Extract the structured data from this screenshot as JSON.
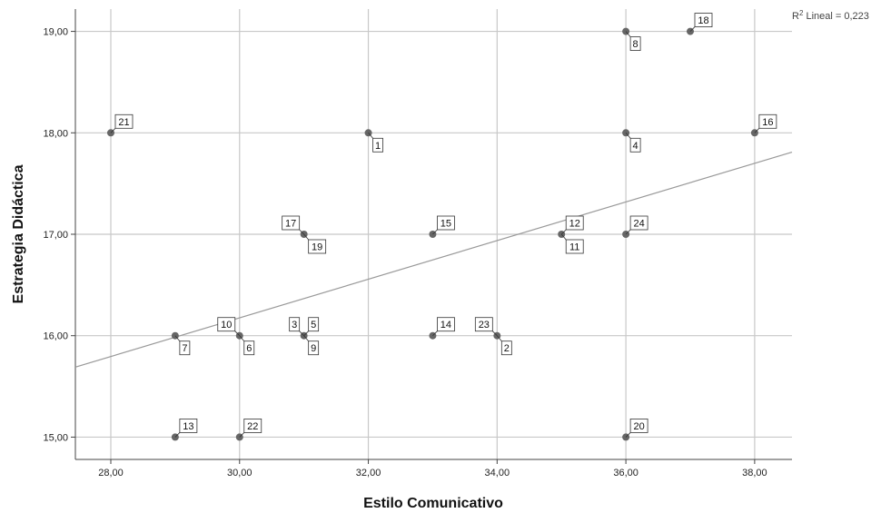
{
  "chart_data": {
    "type": "scatter",
    "title": "",
    "xlabel": "Estilo Comunicativo",
    "ylabel": "Estrategia Didáctica",
    "xlim": [
      27.45,
      38.58
    ],
    "ylim": [
      14.78,
      19.22
    ],
    "x_ticks": [
      28,
      30,
      32,
      34,
      36,
      38
    ],
    "y_ticks": [
      15,
      16,
      17,
      18,
      19
    ],
    "x_tick_labels": [
      "28,00",
      "30,00",
      "32,00",
      "34,00",
      "36,00",
      "38,00"
    ],
    "y_tick_labels": [
      "15,00",
      "16,00",
      "17,00",
      "18,00",
      "19,00"
    ],
    "grid": true,
    "r2_prefix": "R",
    "r2_sup": "2",
    "r2_label": " Lineal = 0,223",
    "fit_line": {
      "x": [
        27.45,
        38.58
      ],
      "y": [
        15.69,
        17.81
      ]
    },
    "colors": {
      "points": "#666666",
      "fit_line": "#999999",
      "grid": "#c8c8c8",
      "axis": "#444444"
    },
    "points": [
      {
        "id": "1",
        "x": 32,
        "y": 18,
        "label_pos": "below"
      },
      {
        "id": "2",
        "x": 34,
        "y": 16,
        "label_pos": "below"
      },
      {
        "id": "3",
        "x": 31,
        "y": 16,
        "label_pos": "upper-left"
      },
      {
        "id": "4",
        "x": 36,
        "y": 18,
        "label_pos": "below"
      },
      {
        "id": "5",
        "x": 31,
        "y": 16,
        "label_pos": "above"
      },
      {
        "id": "6",
        "x": 30,
        "y": 16,
        "label_pos": "below"
      },
      {
        "id": "7",
        "x": 29,
        "y": 16,
        "label_pos": "below"
      },
      {
        "id": "8",
        "x": 36,
        "y": 19,
        "label_pos": "below"
      },
      {
        "id": "9",
        "x": 31,
        "y": 16,
        "label_pos": "below"
      },
      {
        "id": "10",
        "x": 30,
        "y": 16,
        "label_pos": "upper-left"
      },
      {
        "id": "11",
        "x": 35,
        "y": 17,
        "label_pos": "below"
      },
      {
        "id": "12",
        "x": 35,
        "y": 17,
        "label_pos": "above"
      },
      {
        "id": "13",
        "x": 29,
        "y": 15,
        "label_pos": "above"
      },
      {
        "id": "14",
        "x": 33,
        "y": 16,
        "label_pos": "above"
      },
      {
        "id": "15",
        "x": 33,
        "y": 17,
        "label_pos": "above"
      },
      {
        "id": "16",
        "x": 38,
        "y": 18,
        "label_pos": "above"
      },
      {
        "id": "17",
        "x": 31,
        "y": 17,
        "label_pos": "upper-left"
      },
      {
        "id": "18",
        "x": 37,
        "y": 19,
        "label_pos": "above"
      },
      {
        "id": "19",
        "x": 31,
        "y": 17,
        "label_pos": "below"
      },
      {
        "id": "20",
        "x": 36,
        "y": 15,
        "label_pos": "above"
      },
      {
        "id": "21",
        "x": 28,
        "y": 18,
        "label_pos": "above"
      },
      {
        "id": "22",
        "x": 30,
        "y": 15,
        "label_pos": "above"
      },
      {
        "id": "23",
        "x": 34,
        "y": 16,
        "label_pos": "upper-left"
      },
      {
        "id": "24",
        "x": 36,
        "y": 17,
        "label_pos": "above"
      }
    ]
  }
}
